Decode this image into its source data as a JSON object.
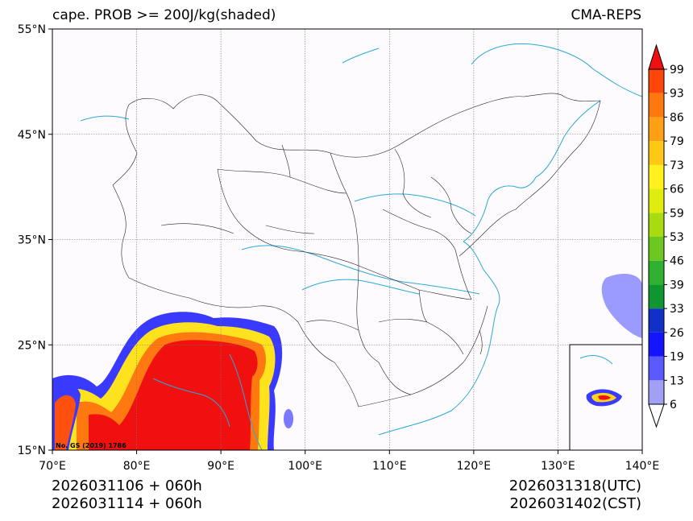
{
  "title": {
    "left": "cape. PROB >= 200J/kg(shaded)",
    "right": "CMA-REPS"
  },
  "axes": {
    "lon_labels": [
      "70°E",
      "80°E",
      "90°E",
      "100°E",
      "110°E",
      "120°E",
      "130°E",
      "140°E"
    ],
    "lat_labels": [
      "55°N",
      "45°N",
      "35°N",
      "25°N",
      "15°N"
    ]
  },
  "map_note": "No. GS (2019) 1786",
  "colorbar": {
    "labels": [
      "6",
      "13",
      "19",
      "26",
      "33",
      "39",
      "46",
      "53",
      "59",
      "66",
      "73",
      "79",
      "86",
      "93",
      "99"
    ],
    "colors": [
      "#a0a0f5",
      "#5a5aff",
      "#1414ff",
      "#1030c8",
      "#109630",
      "#30b030",
      "#6cc820",
      "#a8dc10",
      "#e0ec10",
      "#fff01e",
      "#ffc814",
      "#ffa014",
      "#ff780e",
      "#ff460a",
      "#f01010"
    ]
  },
  "footer": {
    "left_line1": "2026031106  +  060h",
    "left_line2": "2026031114  +  060h",
    "right_line1": "2026031318(UTC)",
    "right_line2": "2026031402(CST)"
  }
}
